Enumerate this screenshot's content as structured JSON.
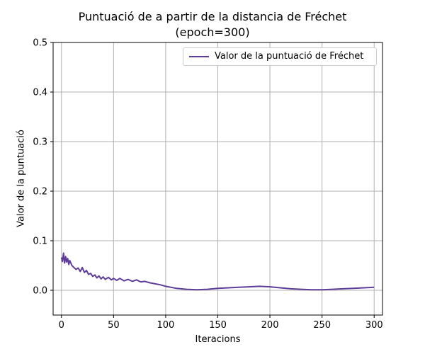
{
  "chart_data": {
    "type": "line",
    "title": "Puntuació de a partir de la distancia de Fréchet",
    "subtitle": "(epoch=300)",
    "xlabel": "Iteracions",
    "ylabel": "Valor de la puntuació",
    "xlim": [
      -8,
      308
    ],
    "ylim": [
      -0.05,
      0.5
    ],
    "xticks": [
      0,
      50,
      100,
      150,
      200,
      250,
      300
    ],
    "xtick_labels": [
      "0",
      "50",
      "100",
      "150",
      "200",
      "250",
      "300"
    ],
    "yticks": [
      0.0,
      0.1,
      0.2,
      0.3,
      0.4,
      0.5
    ],
    "ytick_labels": [
      "0.0",
      "0.1",
      "0.2",
      "0.3",
      "0.4",
      "0.5"
    ],
    "grid": true,
    "legend_position": "top-right",
    "series": [
      {
        "name": "Valor de la puntuació de Fréchet",
        "color": "#5e3c99",
        "x": [
          0,
          1,
          2,
          3,
          4,
          5,
          6,
          7,
          8,
          10,
          12,
          14,
          16,
          18,
          20,
          22,
          24,
          26,
          28,
          30,
          32,
          34,
          36,
          38,
          40,
          42,
          45,
          48,
          50,
          53,
          56,
          60,
          64,
          68,
          72,
          76,
          80,
          85,
          90,
          95,
          100,
          110,
          120,
          130,
          140,
          150,
          160,
          170,
          180,
          190,
          200,
          210,
          220,
          230,
          240,
          250,
          260,
          270,
          280,
          290,
          300
        ],
        "y": [
          0.066,
          0.058,
          0.075,
          0.055,
          0.068,
          0.057,
          0.064,
          0.052,
          0.06,
          0.05,
          0.046,
          0.042,
          0.045,
          0.038,
          0.046,
          0.036,
          0.04,
          0.032,
          0.034,
          0.028,
          0.031,
          0.025,
          0.029,
          0.023,
          0.027,
          0.022,
          0.026,
          0.021,
          0.024,
          0.02,
          0.024,
          0.019,
          0.022,
          0.018,
          0.021,
          0.017,
          0.018,
          0.015,
          0.013,
          0.011,
          0.008,
          0.004,
          0.002,
          0.001,
          0.002,
          0.004,
          0.005,
          0.006,
          0.007,
          0.008,
          0.007,
          0.005,
          0.003,
          0.002,
          0.001,
          0.001,
          0.002,
          0.003,
          0.004,
          0.005,
          0.006
        ]
      }
    ]
  }
}
